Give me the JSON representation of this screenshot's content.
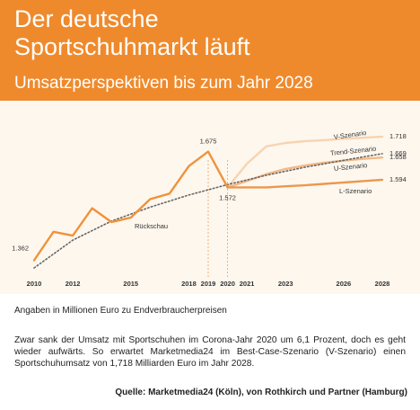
{
  "chart_data": {
    "type": "line",
    "title": "Der deutsche Sportschuhmarkt läuft",
    "subtitle": "Umsatzperspektiven bis zum Jahr 2028",
    "note": "Angaben in Millionen Euro zu Endverbraucherpreisen",
    "description": "Zwar sank der Umsatz mit Sportschuhen im Corona-Jahr 2020 um 6,1 Prozent, doch es geht wieder aufwärts. So erwartet Marketmedia24 im Best-Case-Szenario (V-Szenario) einen Sportschuhumsatz von 1,718 Milliarden Euro im Jahr 2028.",
    "source": "Quelle: Marketmedia24 (Köln), von Rothkirch und Partner (Hamburg)",
    "xlim": [
      2010,
      2028
    ],
    "xticks": [
      2010,
      2012,
      2015,
      2018,
      2019,
      2020,
      2021,
      2023,
      2026,
      2028
    ],
    "series": [
      {
        "name": "Rückschau",
        "color": "#f0923a",
        "x": [
          2010,
          2011,
          2012,
          2013,
          2014,
          2015,
          2016,
          2017,
          2018,
          2019,
          2020
        ],
        "values": [
          1362,
          1444,
          1433,
          1512,
          1472,
          1485,
          1538,
          1554,
          1633,
          1675,
          1572
        ],
        "value_labels": [
          "1.362",
          null,
          null,
          null,
          null,
          null,
          null,
          null,
          null,
          "1.675",
          "1.572"
        ]
      },
      {
        "name": "V-Szenario",
        "color": "#f8d4b0",
        "x": [
          2020,
          2021,
          2022,
          2023,
          2024,
          2025,
          2026,
          2027,
          2028
        ],
        "values": [
          1572,
          1640,
          1690,
          1700,
          1705,
          1708,
          1712,
          1715,
          1718
        ],
        "value_labels": [
          null,
          null,
          null,
          null,
          null,
          null,
          null,
          null,
          "1.718"
        ]
      },
      {
        "name": "Trend-Szenario",
        "color": "#666666",
        "x": [
          2010,
          2012,
          2014,
          2016,
          2018,
          2020,
          2022,
          2024,
          2026,
          2028
        ],
        "values": [
          1340,
          1420,
          1475,
          1515,
          1550,
          1580,
          1607,
          1630,
          1650,
          1669
        ],
        "value_labels": [
          null,
          null,
          null,
          null,
          null,
          null,
          null,
          null,
          null,
          "1.669"
        ]
      },
      {
        "name": "U-Szenario",
        "color": "#f5b885",
        "x": [
          2020,
          2021,
          2022,
          2023,
          2024,
          2025,
          2026,
          2027,
          2028
        ],
        "values": [
          1572,
          1590,
          1610,
          1625,
          1635,
          1643,
          1649,
          1654,
          1658
        ],
        "value_labels": [
          null,
          null,
          null,
          null,
          null,
          null,
          null,
          null,
          "1.658"
        ]
      },
      {
        "name": "L-Szenario",
        "color": "#ea9850",
        "x": [
          2020,
          2021,
          2022,
          2023,
          2024,
          2025,
          2026,
          2027,
          2028
        ],
        "values": [
          1572,
          1572,
          1572,
          1575,
          1578,
          1582,
          1586,
          1590,
          1594
        ],
        "value_labels": [
          null,
          null,
          null,
          null,
          null,
          null,
          null,
          null,
          "1.594"
        ]
      }
    ]
  }
}
